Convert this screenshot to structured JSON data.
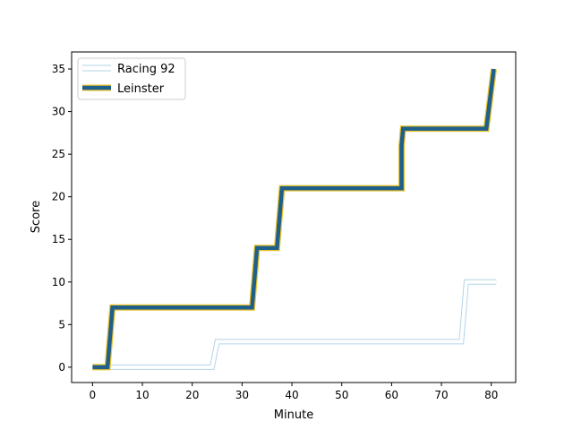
{
  "chart_data": {
    "type": "line",
    "title": "",
    "xlabel": "Minute",
    "ylabel": "Score",
    "xlim": [
      -4.2,
      84.9
    ],
    "ylim": [
      -1.8,
      37.0
    ],
    "xticks": [
      0,
      10,
      20,
      30,
      40,
      50,
      60,
      70,
      80
    ],
    "yticks": [
      0,
      5,
      10,
      15,
      20,
      25,
      30,
      35
    ],
    "grid": false,
    "legend_position": "top-left",
    "series": [
      {
        "name": "Racing 92",
        "color": "#a6cee3",
        "style": "double-outline",
        "points": [
          [
            0,
            0
          ],
          [
            24,
            0
          ],
          [
            25,
            3
          ],
          [
            74,
            3
          ],
          [
            75,
            10
          ],
          [
            81,
            10
          ]
        ]
      },
      {
        "name": "Leinster",
        "color": "#1f5f8b",
        "outline_color": "#e8c22a",
        "style": "thick",
        "points": [
          [
            0,
            0
          ],
          [
            3,
            0
          ],
          [
            4,
            7
          ],
          [
            32,
            7
          ],
          [
            33,
            14
          ],
          [
            37,
            14
          ],
          [
            38,
            21
          ],
          [
            62,
            21
          ],
          [
            62,
            26
          ],
          [
            62.3,
            28
          ],
          [
            79,
            28
          ],
          [
            80.5,
            35
          ]
        ]
      }
    ]
  }
}
